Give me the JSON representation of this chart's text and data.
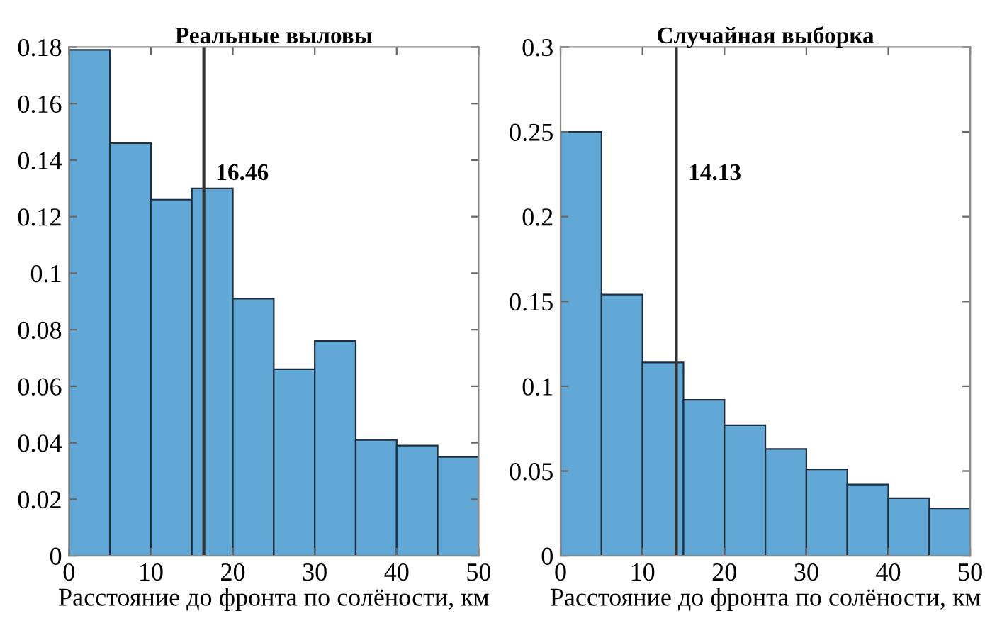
{
  "chart_data": [
    {
      "type": "histogram",
      "title": "Реальные выловы",
      "xlabel": "Расстояние до фронта по солёности, км",
      "bins": [
        0,
        5,
        10,
        15,
        20,
        25,
        30,
        35,
        40,
        45,
        50
      ],
      "values": [
        0.179,
        0.146,
        0.126,
        0.13,
        0.091,
        0.066,
        0.076,
        0.041,
        0.039,
        0.035
      ],
      "color": "#62a8d6",
      "xlim": [
        0,
        50
      ],
      "xticks": [
        0,
        10,
        20,
        30,
        40,
        50
      ],
      "ylim": [
        0,
        0.18
      ],
      "yticks": [
        0,
        0.02,
        0.04,
        0.06,
        0.08,
        0.1,
        0.12,
        0.14,
        0.16,
        0.18
      ],
      "ref_lines": [
        {
          "axis": "x",
          "value": 16.46,
          "label": "16.46",
          "color": "#333333"
        }
      ]
    },
    {
      "type": "histogram",
      "title": "Случайная выборка",
      "xlabel": "Расстояние до фронта по солёности, км",
      "bins": [
        0,
        5,
        10,
        15,
        20,
        25,
        30,
        35,
        40,
        45,
        50
      ],
      "values": [
        0.25,
        0.154,
        0.114,
        0.092,
        0.077,
        0.063,
        0.051,
        0.042,
        0.034,
        0.028
      ],
      "color": "#62a8d6",
      "xlim": [
        0,
        50
      ],
      "xticks": [
        0,
        10,
        20,
        30,
        40,
        50
      ],
      "ylim": [
        0,
        0.3
      ],
      "yticks": [
        0,
        0.05,
        0.1,
        0.15,
        0.2,
        0.25,
        0.3
      ],
      "ref_lines": [
        {
          "axis": "x",
          "value": 14.13,
          "label": "14.13",
          "color": "#333333"
        }
      ]
    }
  ]
}
